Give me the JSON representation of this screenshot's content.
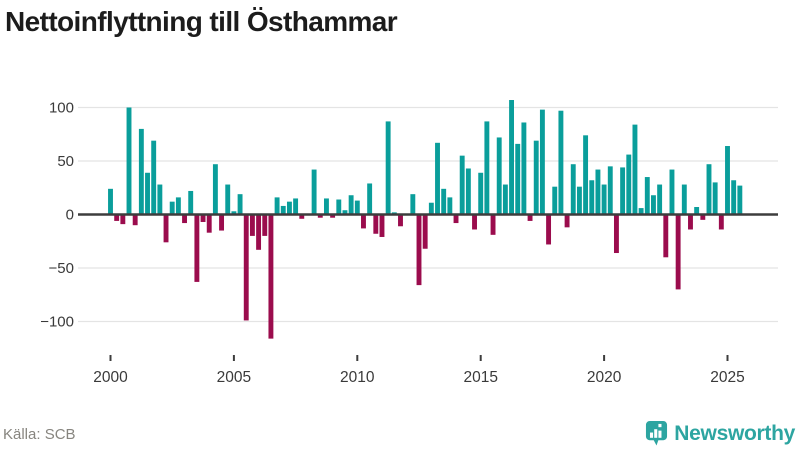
{
  "title": "Nettoinflyttning till Östhammar",
  "source": {
    "label": "Källa: SCB"
  },
  "brand": {
    "name": "Newsworthy",
    "icon": "newsworthy-pin-barchart-icon"
  },
  "colors": {
    "positive": "#0a9e9b",
    "negative": "#9b0c4d",
    "grid": "#e4e4e4",
    "axis": "#3d3d3d",
    "tick_text": "#3a3a3a",
    "title_text": "#1c1c1c",
    "source_text": "#87857f",
    "brand_teal": "#2da5a1"
  },
  "chart_data": {
    "type": "bar",
    "title": "Nettoinflyttning till Östhammar",
    "frequency": "quarterly",
    "x_start": "2000 Q1",
    "x_end": "2025 Q3",
    "grid": "horizontal",
    "legend": "none",
    "ylim": [
      -122,
      115
    ],
    "y_ticks": [
      {
        "value": 100,
        "label": "100"
      },
      {
        "value": 50,
        "label": "50"
      },
      {
        "value": 0,
        "label": "0"
      },
      {
        "value": -50,
        "label": "−50"
      },
      {
        "value": -100,
        "label": "−100"
      }
    ],
    "x_ticks": [
      {
        "index": 0,
        "label": "2000"
      },
      {
        "index": 20,
        "label": "2005"
      },
      {
        "index": 40,
        "label": "2010"
      },
      {
        "index": 60,
        "label": "2015"
      },
      {
        "index": 80,
        "label": "2020"
      },
      {
        "index": 100,
        "label": "2025"
      }
    ],
    "values": [
      24,
      -6,
      -9,
      100,
      -10,
      80,
      39,
      69,
      28,
      -26,
      12,
      16,
      -8,
      22,
      -63,
      -7,
      -17,
      47,
      -15,
      28,
      3,
      19,
      -99,
      -20,
      -33,
      -20,
      -116,
      16,
      8,
      12,
      15,
      -4,
      0,
      42,
      -3,
      15,
      -3,
      14,
      4,
      18,
      13,
      -13,
      29,
      -18,
      -21,
      87,
      2,
      -11,
      0,
      19,
      -66,
      -32,
      11,
      67,
      24,
      16,
      -8,
      55,
      43,
      -14,
      39,
      87,
      -19,
      72,
      28,
      107,
      66,
      86,
      -6,
      69,
      98,
      -28,
      26,
      97,
      -12,
      47,
      26,
      74,
      32,
      42,
      28,
      45,
      -36,
      44,
      56,
      84,
      6,
      35,
      18,
      28,
      -40,
      42,
      -70,
      28,
      -14,
      7,
      -5,
      47,
      30,
      -14,
      64,
      32,
      27
    ]
  }
}
